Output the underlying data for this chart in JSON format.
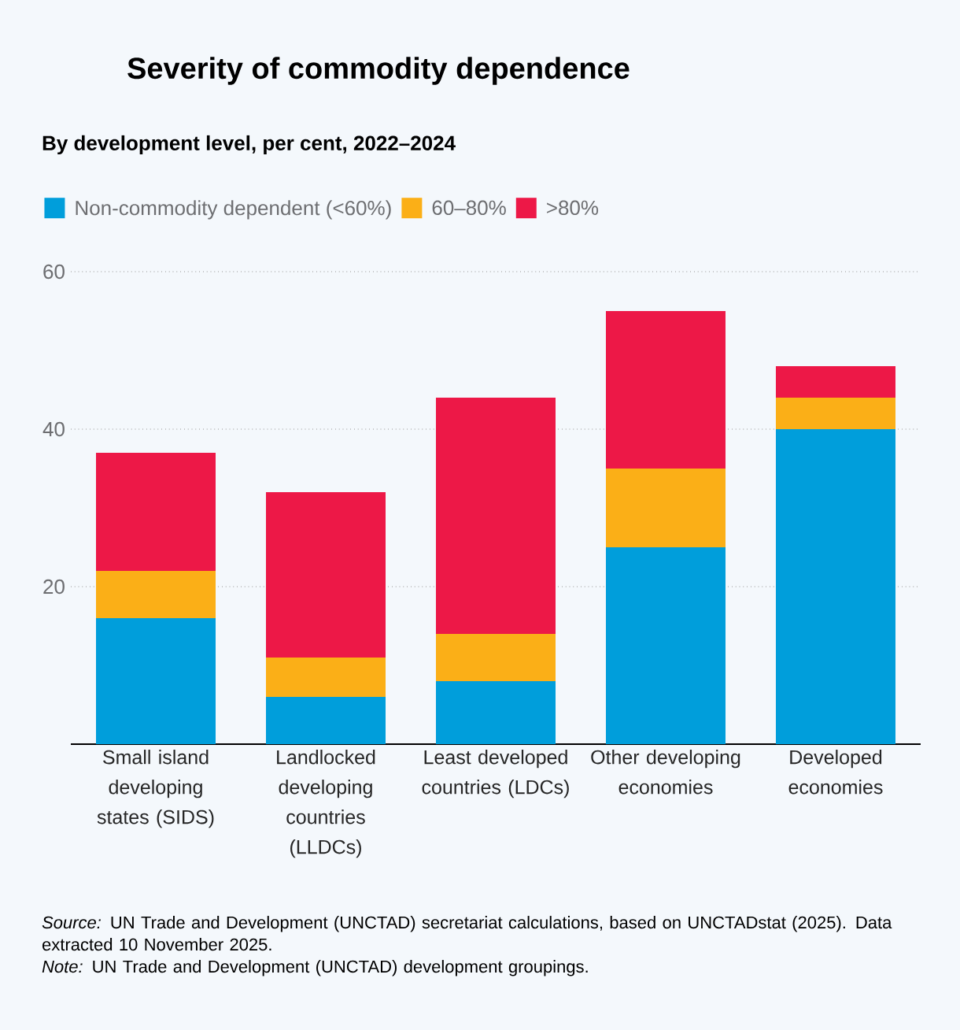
{
  "chart_data": {
    "type": "bar",
    "stacked": true,
    "title": "Severity of commodity dependence",
    "subtitle": "By development level, per cent, 2022–2024",
    "categories": [
      "Small island developing states (SIDS)",
      "Landlocked developing countries (LLDCs)",
      "Least developed countries (LDCs)",
      "Other developing economies",
      "Developed economies"
    ],
    "series": [
      {
        "name": "Non-commodity dependent (<60%)",
        "color": "#009edb",
        "values": [
          16,
          6,
          8,
          25,
          40
        ]
      },
      {
        "name": "60–80%",
        "color": "#fbaf17",
        "values": [
          6,
          5,
          6,
          10,
          4
        ]
      },
      {
        "name": ">80%",
        "color": "#ed1847",
        "values": [
          15,
          21,
          30,
          20,
          4
        ]
      }
    ],
    "ylim": [
      0,
      60
    ],
    "yticks": [
      20,
      40,
      60
    ],
    "grid": "y",
    "legend": "top left",
    "annotations": [
      "*Source:* UN Trade and Development (UNCTAD) secretariat calculations, based on UNCTADstat (2025). Data extracted 10 November 2025.",
      "*Note:* UN Trade and Development (UNCTAD) development groupings."
    ]
  }
}
